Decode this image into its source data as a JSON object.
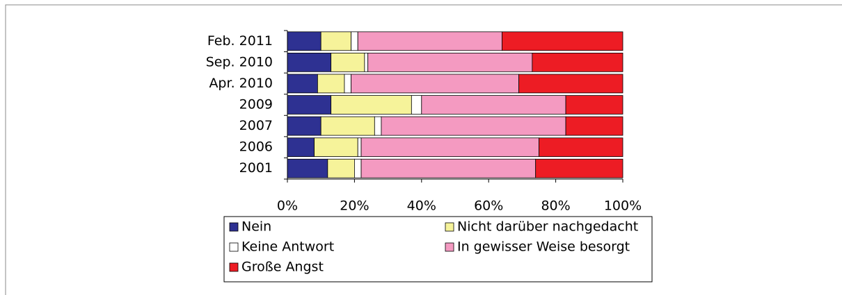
{
  "chart_data": {
    "type": "stacked-barh",
    "categories": [
      "Feb. 2011",
      "Sep. 2010",
      "Apr. 2010",
      "2009",
      "2007",
      "2006",
      "2001"
    ],
    "series": [
      {
        "name": "Nein",
        "color": "#2e3192",
        "values": [
          10,
          13,
          9,
          13,
          10,
          8,
          12
        ]
      },
      {
        "name": "Nicht darüber nachgedacht",
        "color": "#f6f39a",
        "values": [
          9,
          10,
          8,
          24,
          16,
          13,
          8
        ]
      },
      {
        "name": "Keine Antwort",
        "color": "#ffffff",
        "values": [
          2,
          1,
          2,
          3,
          2,
          1,
          2
        ]
      },
      {
        "name": "In gewisser Weise besorgt",
        "color": "#f49ac1",
        "values": [
          43,
          49,
          50,
          43,
          55,
          53,
          52
        ]
      },
      {
        "name": "Große Angst",
        "color": "#ed1c24",
        "values": [
          36,
          27,
          31,
          17,
          17,
          25,
          26
        ]
      }
    ],
    "xlim": [
      0,
      100
    ],
    "xticks": [
      {
        "value": 0,
        "label": "0%"
      },
      {
        "value": 20,
        "label": "20%"
      },
      {
        "value": 40,
        "label": "40%"
      },
      {
        "value": 60,
        "label": "60%"
      },
      {
        "value": 80,
        "label": "80%"
      },
      {
        "value": 100,
        "label": "100%"
      }
    ]
  }
}
